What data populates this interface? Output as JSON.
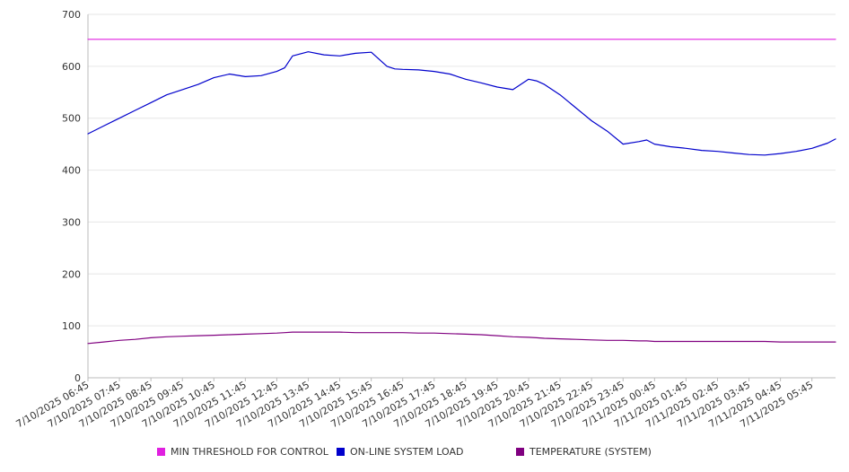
{
  "chart_data": {
    "type": "line",
    "title": "",
    "xlabel": "",
    "ylabel": "",
    "ylim": [
      0,
      700
    ],
    "yticks": [
      0,
      100,
      200,
      300,
      400,
      500,
      600,
      700
    ],
    "grid": "horizontal",
    "legend_position": "bottom",
    "x_tick_labels": [
      "7/10/2025 06:45",
      "7/10/2025 07:45",
      "7/10/2025 08:45",
      "7/10/2025 09:45",
      "7/10/2025 10:45",
      "7/10/2025 11:45",
      "7/10/2025 12:45",
      "7/10/2025 13:45",
      "7/10/2025 14:45",
      "7/10/2025 15:45",
      "7/10/2025 16:45",
      "7/10/2025 17:45",
      "7/10/2025 18:45",
      "7/10/2025 19:45",
      "7/10/2025 20:45",
      "7/10/2025 21:45",
      "7/10/2025 22:45",
      "7/10/2025 23:45",
      "7/11/2025 00:45",
      "7/11/2025 01:45",
      "7/11/2025 02:45",
      "7/11/2025 03:45",
      "7/11/2025 04:45",
      "7/11/2025 05:45"
    ],
    "x": [
      "7/10/2025 06:45",
      "7/10/2025 07:15",
      "7/10/2025 07:45",
      "7/10/2025 08:15",
      "7/10/2025 08:45",
      "7/10/2025 09:15",
      "7/10/2025 09:45",
      "7/10/2025 10:15",
      "7/10/2025 10:45",
      "7/10/2025 11:15",
      "7/10/2025 11:45",
      "7/10/2025 12:15",
      "7/10/2025 12:45",
      "7/10/2025 13:00",
      "7/10/2025 13:15",
      "7/10/2025 13:45",
      "7/10/2025 14:15",
      "7/10/2025 14:45",
      "7/10/2025 15:15",
      "7/10/2025 15:45",
      "7/10/2025 16:15",
      "7/10/2025 16:30",
      "7/10/2025 16:45",
      "7/10/2025 17:15",
      "7/10/2025 17:45",
      "7/10/2025 18:15",
      "7/10/2025 18:45",
      "7/10/2025 19:15",
      "7/10/2025 19:45",
      "7/10/2025 20:15",
      "7/10/2025 20:45",
      "7/10/2025 21:00",
      "7/10/2025 21:15",
      "7/10/2025 21:45",
      "7/10/2025 22:15",
      "7/10/2025 22:45",
      "7/10/2025 23:15",
      "7/10/2025 23:45",
      "7/11/2025 00:15",
      "7/11/2025 00:30",
      "7/11/2025 00:45",
      "7/11/2025 01:15",
      "7/11/2025 01:45",
      "7/11/2025 02:15",
      "7/11/2025 02:45",
      "7/11/2025 03:15",
      "7/11/2025 03:45",
      "7/11/2025 04:15",
      "7/11/2025 04:45",
      "7/11/2025 05:15",
      "7/11/2025 05:45",
      "7/11/2025 06:15",
      "7/11/2025 06:30"
    ],
    "series": [
      {
        "name": "MIN THRESHOLD FOR CONTROL",
        "color": "#e020e0",
        "values": [
          652,
          652,
          652,
          652,
          652,
          652,
          652,
          652,
          652,
          652,
          652,
          652,
          652,
          652,
          652,
          652,
          652,
          652,
          652,
          652,
          652,
          652,
          652,
          652,
          652,
          652,
          652,
          652,
          652,
          652,
          652,
          652,
          652,
          652,
          652,
          652,
          652,
          652,
          652,
          652,
          652,
          652,
          652,
          652,
          652,
          652,
          652,
          652,
          652,
          652,
          652,
          652,
          652
        ]
      },
      {
        "name": "ON-LINE SYSTEM LOAD",
        "color": "#0000cc",
        "values": [
          470,
          485,
          500,
          515,
          530,
          545,
          555,
          565,
          578,
          585,
          580,
          582,
          590,
          597,
          620,
          628,
          622,
          620,
          625,
          627,
          600,
          595,
          594,
          593,
          590,
          585,
          575,
          568,
          560,
          555,
          575,
          572,
          565,
          545,
          520,
          495,
          475,
          450,
          455,
          458,
          450,
          445,
          442,
          438,
          436,
          433,
          430,
          429,
          432,
          436,
          442,
          452,
          460
        ]
      },
      {
        "name": "TEMPERATURE (SYSTEM)",
        "color": "#800080",
        "values": [
          66,
          69,
          72,
          74,
          77,
          79,
          80,
          81,
          82,
          83,
          84,
          85,
          86,
          87,
          88,
          88,
          88,
          88,
          87,
          87,
          87,
          87,
          87,
          86,
          86,
          85,
          84,
          83,
          81,
          79,
          78,
          77,
          76,
          75,
          74,
          73,
          72,
          72,
          71,
          71,
          70,
          70,
          70,
          70,
          70,
          70,
          70,
          70,
          69,
          69,
          69,
          69,
          69
        ]
      }
    ]
  }
}
